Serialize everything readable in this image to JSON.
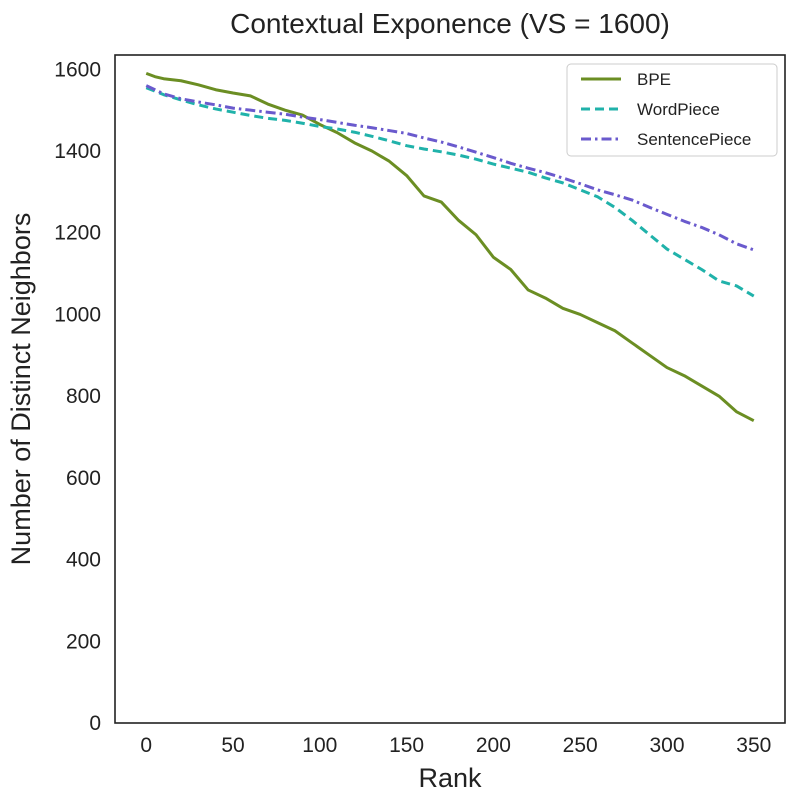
{
  "chart_data": {
    "type": "line",
    "title": "Contextual Exponence (VS = 1600)",
    "xlabel": "Rank",
    "ylabel": "Number of Distinct Neighbors",
    "xlim": [
      -18,
      368
    ],
    "ylim": [
      0,
      1635
    ],
    "xticks": [
      0,
      50,
      100,
      150,
      200,
      250,
      300,
      350
    ],
    "yticks": [
      0,
      200,
      400,
      600,
      800,
      1000,
      1200,
      1400,
      1600
    ],
    "grid": false,
    "legend_position": "top-right",
    "series": [
      {
        "name": "BPE",
        "color": "#6b8e23",
        "dash": "solid",
        "points": [
          [
            0,
            1590
          ],
          [
            5,
            1582
          ],
          [
            10,
            1577
          ],
          [
            20,
            1572
          ],
          [
            30,
            1562
          ],
          [
            40,
            1550
          ],
          [
            50,
            1542
          ],
          [
            60,
            1535
          ],
          [
            70,
            1515
          ],
          [
            80,
            1500
          ],
          [
            90,
            1488
          ],
          [
            100,
            1465
          ],
          [
            110,
            1445
          ],
          [
            120,
            1420
          ],
          [
            130,
            1400
          ],
          [
            140,
            1375
          ],
          [
            150,
            1340
          ],
          [
            160,
            1290
          ],
          [
            170,
            1275
          ],
          [
            180,
            1230
          ],
          [
            190,
            1195
          ],
          [
            200,
            1140
          ],
          [
            210,
            1110
          ],
          [
            220,
            1060
          ],
          [
            230,
            1040
          ],
          [
            240,
            1015
          ],
          [
            250,
            1000
          ],
          [
            260,
            980
          ],
          [
            270,
            960
          ],
          [
            280,
            930
          ],
          [
            290,
            900
          ],
          [
            300,
            870
          ],
          [
            310,
            850
          ],
          [
            320,
            825
          ],
          [
            330,
            800
          ],
          [
            340,
            762
          ],
          [
            350,
            740
          ]
        ]
      },
      {
        "name": "WordPiece",
        "color": "#20b2aa",
        "dash": "dashed",
        "points": [
          [
            0,
            1555
          ],
          [
            10,
            1538
          ],
          [
            20,
            1525
          ],
          [
            30,
            1513
          ],
          [
            40,
            1503
          ],
          [
            50,
            1495
          ],
          [
            60,
            1487
          ],
          [
            70,
            1480
          ],
          [
            80,
            1475
          ],
          [
            90,
            1468
          ],
          [
            100,
            1460
          ],
          [
            110,
            1454
          ],
          [
            120,
            1446
          ],
          [
            130,
            1436
          ],
          [
            140,
            1425
          ],
          [
            150,
            1413
          ],
          [
            160,
            1405
          ],
          [
            170,
            1398
          ],
          [
            180,
            1390
          ],
          [
            190,
            1380
          ],
          [
            200,
            1368
          ],
          [
            210,
            1358
          ],
          [
            220,
            1348
          ],
          [
            230,
            1334
          ],
          [
            240,
            1322
          ],
          [
            250,
            1305
          ],
          [
            260,
            1288
          ],
          [
            270,
            1262
          ],
          [
            280,
            1230
          ],
          [
            290,
            1195
          ],
          [
            300,
            1160
          ],
          [
            310,
            1135
          ],
          [
            320,
            1110
          ],
          [
            330,
            1082
          ],
          [
            340,
            1070
          ],
          [
            350,
            1045
          ]
        ]
      },
      {
        "name": "SentencePiece",
        "color": "#6a5acd",
        "dash": "dashdot",
        "points": [
          [
            0,
            1560
          ],
          [
            10,
            1540
          ],
          [
            20,
            1528
          ],
          [
            30,
            1520
          ],
          [
            40,
            1513
          ],
          [
            50,
            1505
          ],
          [
            60,
            1500
          ],
          [
            70,
            1495
          ],
          [
            80,
            1490
          ],
          [
            90,
            1483
          ],
          [
            100,
            1477
          ],
          [
            110,
            1470
          ],
          [
            120,
            1463
          ],
          [
            130,
            1457
          ],
          [
            140,
            1450
          ],
          [
            150,
            1443
          ],
          [
            160,
            1432
          ],
          [
            170,
            1422
          ],
          [
            180,
            1410
          ],
          [
            190,
            1397
          ],
          [
            200,
            1384
          ],
          [
            210,
            1370
          ],
          [
            220,
            1358
          ],
          [
            230,
            1347
          ],
          [
            240,
            1334
          ],
          [
            250,
            1320
          ],
          [
            260,
            1305
          ],
          [
            270,
            1293
          ],
          [
            280,
            1280
          ],
          [
            290,
            1262
          ],
          [
            300,
            1245
          ],
          [
            310,
            1228
          ],
          [
            320,
            1213
          ],
          [
            330,
            1195
          ],
          [
            340,
            1173
          ],
          [
            350,
            1158
          ]
        ]
      }
    ]
  }
}
